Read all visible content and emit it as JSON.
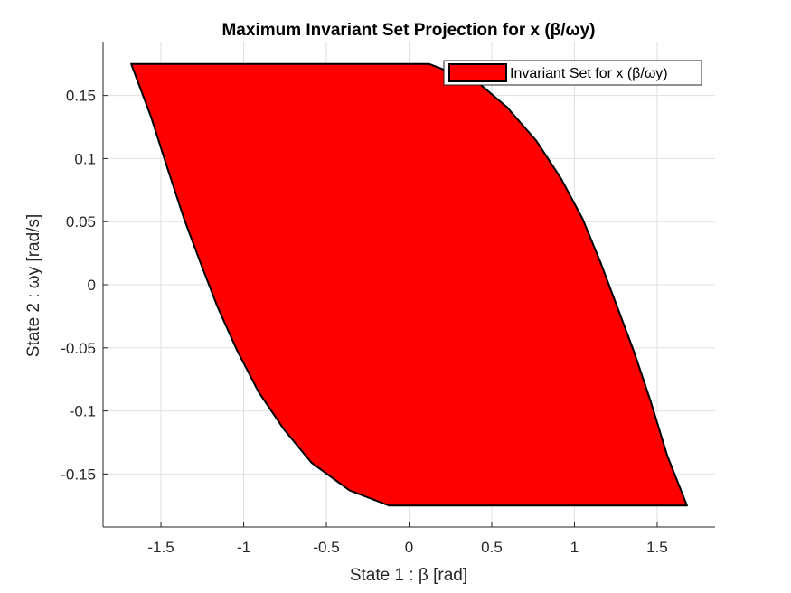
{
  "chart_data": {
    "type": "area",
    "title": "Maximum Invariant Set Projection for x (β/ωy)",
    "xlabel": "State 1 : β [rad]",
    "ylabel": "State 2 : ωy [rad/s]",
    "xlim": [
      -1.85,
      1.85
    ],
    "ylim": [
      -0.192,
      0.192
    ],
    "xticks": [
      -1.5,
      -1,
      -0.5,
      0,
      0.5,
      1,
      1.5
    ],
    "xtick_labels": [
      "-1.5",
      "-1",
      "-0.5",
      "0",
      "0.5",
      "1",
      "1.5"
    ],
    "yticks": [
      -0.15,
      -0.1,
      -0.05,
      0,
      0.05,
      0.1,
      0.15
    ],
    "ytick_labels": [
      "-0.15",
      "-0.1",
      "-0.05",
      "0",
      "0.05",
      "0.1",
      "0.15"
    ],
    "grid": true,
    "legend_position": "top-right",
    "series": [
      {
        "name": "Invariant Set for x (β/ωy)",
        "color": "#ff0000",
        "edge_color": "#000000",
        "polygon": [
          [
            -1.68,
            0.175
          ],
          [
            0.12,
            0.175
          ],
          [
            0.42,
            0.16
          ],
          [
            0.59,
            0.141
          ],
          [
            0.77,
            0.114
          ],
          [
            0.92,
            0.084
          ],
          [
            1.05,
            0.052
          ],
          [
            1.16,
            0.017
          ],
          [
            1.26,
            -0.018
          ],
          [
            1.36,
            -0.053
          ],
          [
            1.46,
            -0.092
          ],
          [
            1.56,
            -0.135
          ],
          [
            1.68,
            -0.175
          ],
          [
            -0.12,
            -0.175
          ],
          [
            -0.36,
            -0.163
          ],
          [
            -0.59,
            -0.141
          ],
          [
            -0.76,
            -0.114
          ],
          [
            -0.91,
            -0.085
          ],
          [
            -1.04,
            -0.052
          ],
          [
            -1.16,
            -0.017
          ],
          [
            -1.26,
            0.017
          ],
          [
            -1.36,
            0.052
          ],
          [
            -1.46,
            0.092
          ],
          [
            -1.56,
            0.133
          ]
        ]
      }
    ]
  }
}
